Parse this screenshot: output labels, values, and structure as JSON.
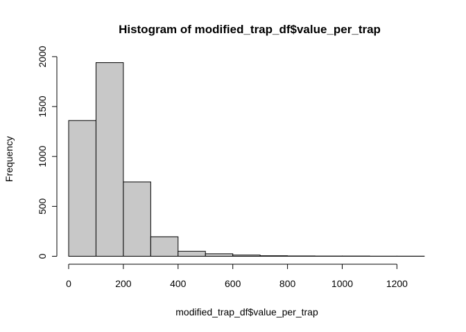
{
  "chart_data": {
    "type": "bar",
    "title": "Histogram of modified_trap_df$value_per_trap",
    "xlabel": "modified_trap_df$value_per_trap",
    "ylabel": "Frequency",
    "bins": [
      {
        "from": 0,
        "to": 100,
        "count": 1360
      },
      {
        "from": 100,
        "to": 200,
        "count": 1940
      },
      {
        "from": 200,
        "to": 300,
        "count": 745
      },
      {
        "from": 300,
        "to": 400,
        "count": 195
      },
      {
        "from": 400,
        "to": 500,
        "count": 50
      },
      {
        "from": 500,
        "to": 600,
        "count": 25
      },
      {
        "from": 600,
        "to": 700,
        "count": 12
      },
      {
        "from": 700,
        "to": 800,
        "count": 5
      },
      {
        "from": 800,
        "to": 900,
        "count": 3
      },
      {
        "from": 900,
        "to": 1000,
        "count": 2
      },
      {
        "from": 1000,
        "to": 1100,
        "count": 2
      },
      {
        "from": 1100,
        "to": 1200,
        "count": 1
      },
      {
        "from": 1200,
        "to": 1300,
        "count": 1
      }
    ],
    "x_ticks": [
      0,
      200,
      400,
      600,
      800,
      1000,
      1200
    ],
    "y_ticks": [
      0,
      500,
      1000,
      1500,
      2000
    ],
    "xlim": [
      0,
      1300
    ],
    "ylim": [
      0,
      2000
    ],
    "bar_color": "#c8c8c8",
    "grid": false
  }
}
